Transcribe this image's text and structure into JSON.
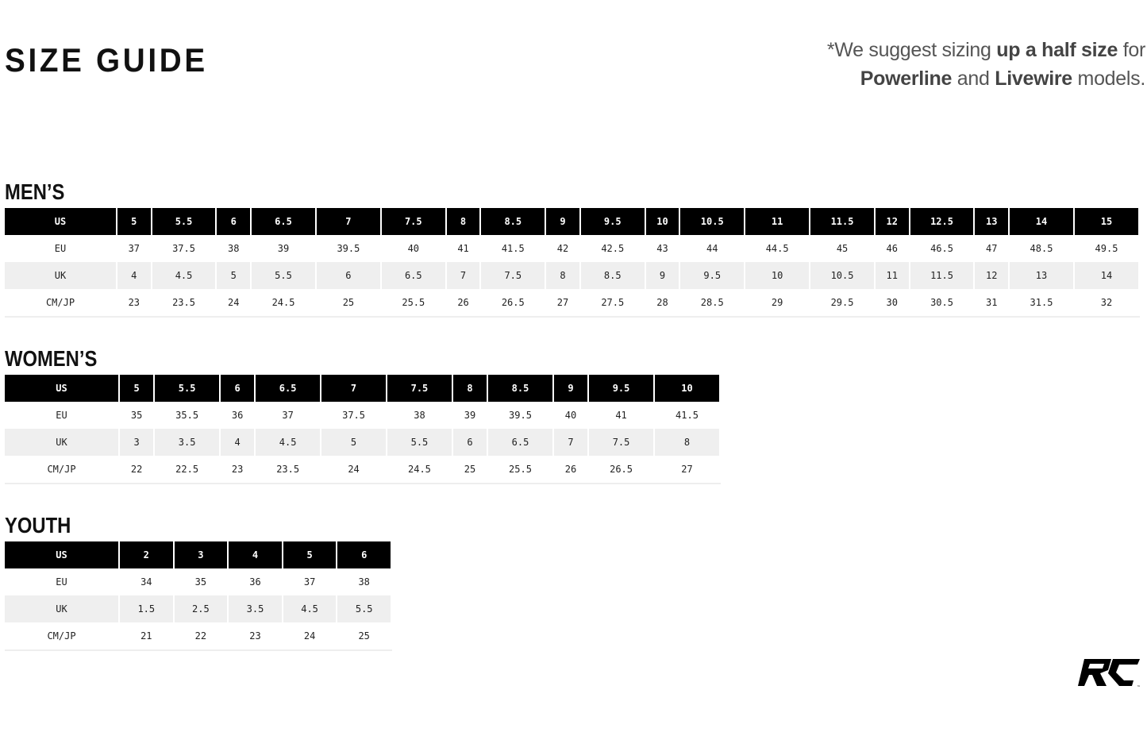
{
  "title": "SIZE GUIDE",
  "note": {
    "prefix": "*We suggest sizing ",
    "bold1": "up a half size",
    "mid1": " for ",
    "bold2": "Powerline",
    "mid2": " and ",
    "bold3": "Livewire",
    "suffix": " models."
  },
  "tables": [
    {
      "key": "mens",
      "heading": "MEN’S",
      "rows": [
        {
          "label": "US",
          "values": [
            "5",
            "5.5",
            "6",
            "6.5",
            "7",
            "7.5",
            "8",
            "8.5",
            "9",
            "9.5",
            "10",
            "10.5",
            "11",
            "11.5",
            "12",
            "12.5",
            "13",
            "14",
            "15"
          ]
        },
        {
          "label": "EU",
          "values": [
            "37",
            "37.5",
            "38",
            "39",
            "39.5",
            "40",
            "41",
            "41.5",
            "42",
            "42.5",
            "43",
            "44",
            "44.5",
            "45",
            "46",
            "46.5",
            "47",
            "48.5",
            "49.5"
          ]
        },
        {
          "label": "UK",
          "values": [
            "4",
            "4.5",
            "5",
            "5.5",
            "6",
            "6.5",
            "7",
            "7.5",
            "8",
            "8.5",
            "9",
            "9.5",
            "10",
            "10.5",
            "11",
            "11.5",
            "12",
            "13",
            "14"
          ]
        },
        {
          "label": "CM/JP",
          "values": [
            "23",
            "23.5",
            "24",
            "24.5",
            "25",
            "25.5",
            "26",
            "26.5",
            "27",
            "27.5",
            "28",
            "28.5",
            "29",
            "29.5",
            "30",
            "30.5",
            "31",
            "31.5",
            "32"
          ]
        }
      ]
    },
    {
      "key": "womens",
      "heading": "WOMEN’S",
      "rows": [
        {
          "label": "US",
          "values": [
            "5",
            "5.5",
            "6",
            "6.5",
            "7",
            "7.5",
            "8",
            "8.5",
            "9",
            "9.5",
            "10"
          ]
        },
        {
          "label": "EU",
          "values": [
            "35",
            "35.5",
            "36",
            "37",
            "37.5",
            "38",
            "39",
            "39.5",
            "40",
            "41",
            "41.5"
          ]
        },
        {
          "label": "UK",
          "values": [
            "3",
            "3.5",
            "4",
            "4.5",
            "5",
            "5.5",
            "6",
            "6.5",
            "7",
            "7.5",
            "8"
          ]
        },
        {
          "label": "CM/JP",
          "values": [
            "22",
            "22.5",
            "23",
            "23.5",
            "24",
            "24.5",
            "25",
            "25.5",
            "26",
            "26.5",
            "27"
          ]
        }
      ]
    },
    {
      "key": "youth",
      "heading": "YOUTH",
      "rows": [
        {
          "label": "US",
          "values": [
            "2",
            "3",
            "4",
            "5",
            "6"
          ]
        },
        {
          "label": "EU",
          "values": [
            "34",
            "35",
            "36",
            "37",
            "38"
          ]
        },
        {
          "label": "UK",
          "values": [
            "1.5",
            "2.5",
            "3.5",
            "4.5",
            "5.5"
          ]
        },
        {
          "label": "CM/JP",
          "values": [
            "21",
            "22",
            "23",
            "24",
            "25"
          ]
        }
      ]
    }
  ],
  "logo": {
    "text": "RC",
    "mark": "™",
    "color": "#000000"
  }
}
